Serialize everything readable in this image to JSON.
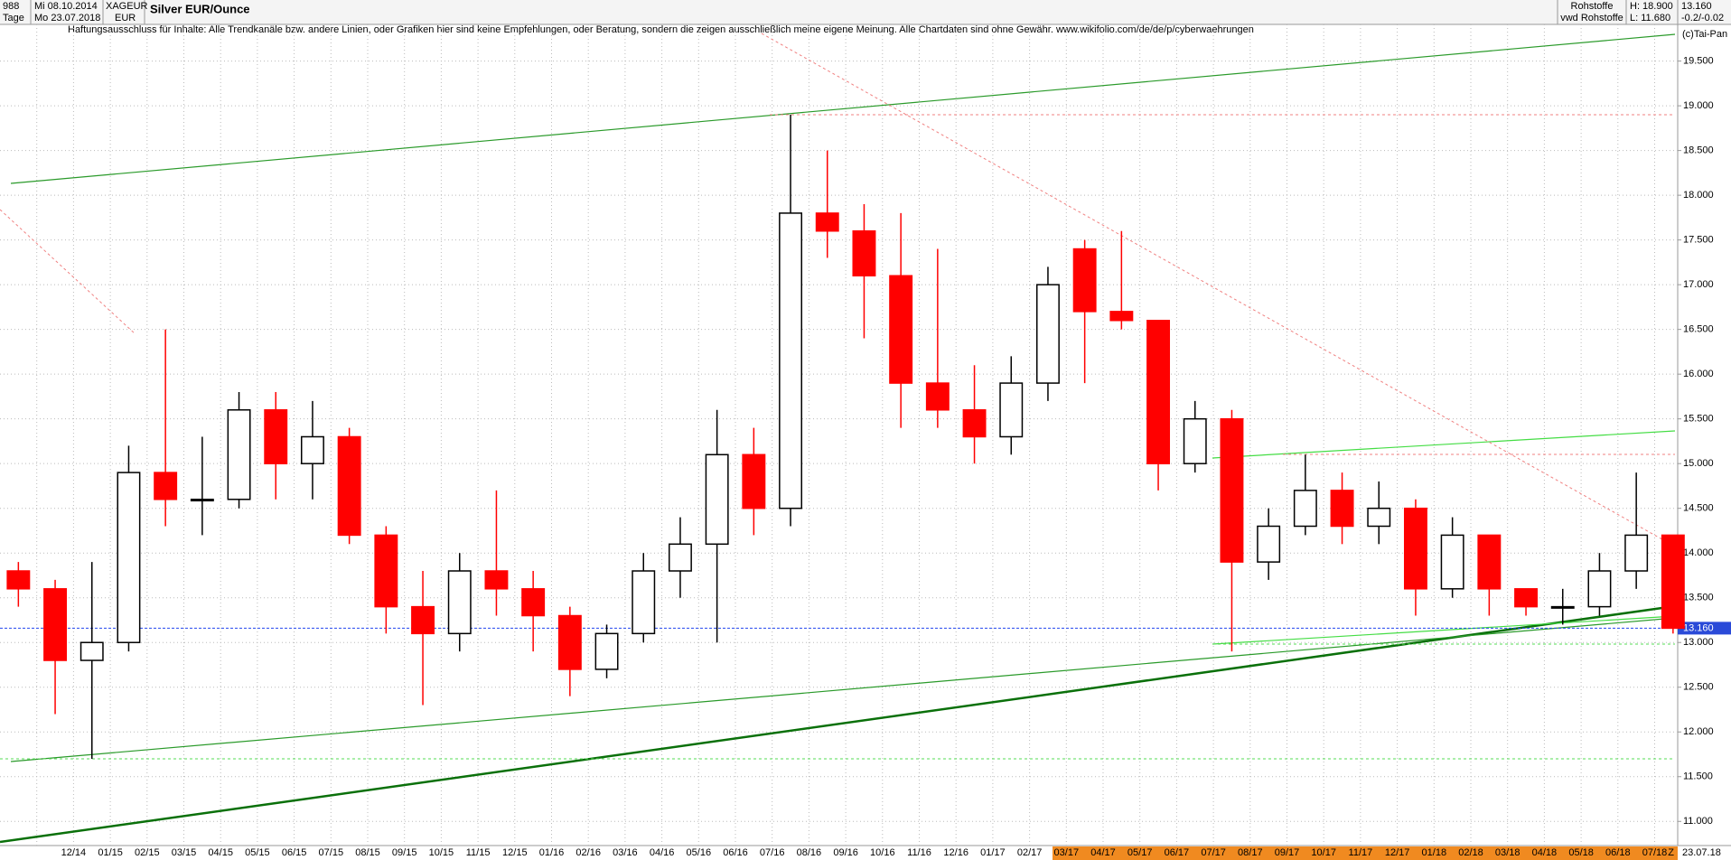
{
  "header": {
    "bars": "988",
    "period": "Tage",
    "start": "Mi 08.10.2014",
    "end": "Mo 23.07.2018",
    "symbol": "XAGEUR",
    "currency": "EUR",
    "title": "Silver EUR/Ounce",
    "disclaimer": "Haftungsausschluss für Inhalte: Alle Trendkanäle bzw. andere Linien, oder Grafiken hier sind keine Empfehlungen, oder Beratung, sondern die zeigen ausschließlich meine eigene Meinung. Alle Chartdaten sind ohne Gewähr.  www.wikifolio.com/de/de/p/cyberwaehrungen",
    "group": "Rohstoffe",
    "source": "vwd Rohstoffe",
    "high": "H: 18.900",
    "low": "L: 11.680",
    "last": "13.160",
    "change": "-0.2/-0.02",
    "copyright": "(c)Tai-Pan",
    "end_marker": "Z",
    "end_date": "23.07.18"
  },
  "chart_data": {
    "type": "candlestick",
    "categories": [
      null,
      null,
      "12/14",
      "01/15",
      "02/15",
      "03/15",
      "04/15",
      "05/15",
      "06/15",
      "07/15",
      "08/15",
      "09/15",
      "10/15",
      "11/15",
      "12/15",
      "01/16",
      "02/16",
      "03/16",
      "04/16",
      "05/16",
      "06/16",
      "07/16",
      "08/16",
      "09/16",
      "10/16",
      "11/16",
      "12/16",
      "01/17",
      "02/17",
      "03/17",
      "04/17",
      "05/17",
      "06/17",
      "07/17",
      "08/17",
      "09/17",
      "10/17",
      "11/17",
      "12/17",
      "01/18",
      "02/18",
      "03/18",
      "04/18",
      "05/18",
      "06/18",
      "07/18"
    ],
    "open": [
      13.8,
      13.6,
      12.8,
      13.0,
      14.9,
      14.6,
      14.6,
      15.6,
      15.0,
      15.3,
      14.2,
      13.4,
      13.1,
      13.8,
      13.6,
      13.3,
      12.7,
      13.1,
      13.8,
      14.1,
      15.1,
      14.5,
      17.8,
      17.6,
      17.1,
      15.9,
      15.6,
      15.3,
      15.9,
      17.4,
      16.7,
      16.6,
      15.0,
      15.5,
      13.9,
      14.3,
      14.7,
      14.3,
      14.5,
      13.6,
      14.2,
      13.6,
      13.4,
      13.4,
      13.8,
      14.2
    ],
    "high": [
      13.9,
      13.7,
      13.9,
      15.2,
      16.5,
      15.3,
      15.8,
      15.8,
      15.7,
      15.4,
      14.3,
      13.8,
      14.0,
      14.7,
      13.8,
      13.4,
      13.2,
      14.0,
      14.4,
      15.6,
      15.4,
      18.9,
      18.5,
      17.9,
      17.8,
      17.4,
      16.1,
      16.2,
      17.2,
      17.5,
      17.6,
      16.6,
      15.7,
      15.6,
      14.5,
      15.1,
      14.9,
      14.8,
      14.6,
      14.4,
      14.2,
      13.6,
      13.6,
      14.0,
      14.9,
      14.2
    ],
    "low": [
      13.4,
      12.2,
      11.7,
      12.9,
      14.3,
      14.2,
      14.5,
      14.6,
      14.6,
      14.1,
      13.1,
      12.3,
      12.9,
      13.3,
      12.9,
      12.4,
      12.6,
      13.0,
      13.5,
      13.0,
      14.2,
      14.3,
      17.3,
      16.4,
      15.4,
      15.4,
      15.0,
      15.1,
      15.7,
      15.9,
      16.5,
      14.7,
      14.9,
      12.9,
      13.7,
      14.2,
      14.1,
      14.1,
      13.3,
      13.5,
      13.3,
      13.3,
      13.2,
      13.3,
      13.6,
      13.1
    ],
    "close": [
      13.6,
      12.8,
      13.0,
      14.9,
      14.6,
      14.6,
      15.6,
      15.0,
      15.3,
      14.2,
      13.4,
      13.1,
      13.8,
      13.6,
      13.3,
      12.7,
      13.1,
      13.8,
      14.1,
      15.1,
      14.5,
      17.8,
      17.6,
      17.1,
      15.9,
      15.6,
      15.3,
      15.9,
      17.0,
      16.7,
      16.6,
      15.0,
      15.5,
      13.9,
      14.3,
      14.7,
      14.3,
      14.5,
      13.6,
      14.2,
      13.6,
      13.4,
      13.4,
      13.8,
      14.2,
      13.16
    ],
    "up_color": "#000000",
    "down_color": "#ff0000",
    "last_price": {
      "value": 13.16,
      "label": "13.160"
    },
    "ylim": [
      10.73,
      19.91
    ],
    "yticks": [
      {
        "value": 11,
        "label": "11.000"
      },
      {
        "value": 11.5,
        "label": "11.500"
      },
      {
        "value": 12,
        "label": "12.000"
      },
      {
        "value": 12.5,
        "label": "12.500"
      },
      {
        "value": 13,
        "label": "13.000"
      },
      {
        "value": 13.5,
        "label": "13.500"
      },
      {
        "value": 14,
        "label": "14.000"
      },
      {
        "value": 14.5,
        "label": "14.500"
      },
      {
        "value": 15,
        "label": "15.000"
      },
      {
        "value": 15.5,
        "label": "15.500"
      },
      {
        "value": 16,
        "label": "16.000"
      },
      {
        "value": 16.5,
        "label": "16.500"
      },
      {
        "value": 17,
        "label": "17.000"
      },
      {
        "value": 17.5,
        "label": "17.500"
      },
      {
        "value": 18,
        "label": "18.000"
      },
      {
        "value": 18.5,
        "label": "18.500"
      },
      {
        "value": 19,
        "label": "19.000"
      },
      {
        "value": 19.5,
        "label": "19.500"
      }
    ],
    "grid": true
  }
}
